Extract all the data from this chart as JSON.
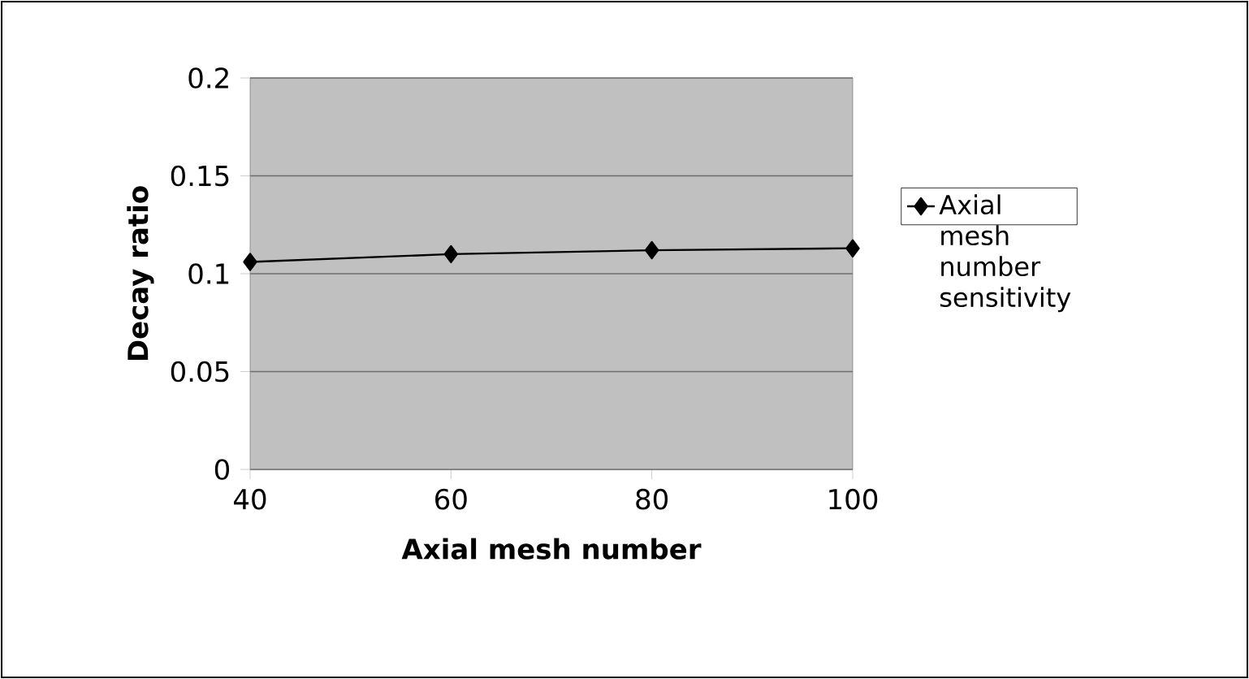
{
  "chart_data": {
    "type": "line",
    "xlabel": "Axial mesh number",
    "ylabel": "Decay ratio",
    "x": [
      40,
      60,
      80,
      100
    ],
    "series": [
      {
        "name": "Axial mesh number sensitivity",
        "color": "#000000",
        "values": [
          0.106,
          0.11,
          0.112,
          0.113
        ]
      }
    ],
    "xlim": [
      40,
      100
    ],
    "xticks": [
      40,
      60,
      80,
      100
    ],
    "ylim": [
      0,
      0.2
    ],
    "yticks": [
      0,
      0.05,
      0.1,
      0.15,
      0.2
    ],
    "grid": "y",
    "legend": "right",
    "marker": "diamond",
    "line_style": "solid"
  }
}
